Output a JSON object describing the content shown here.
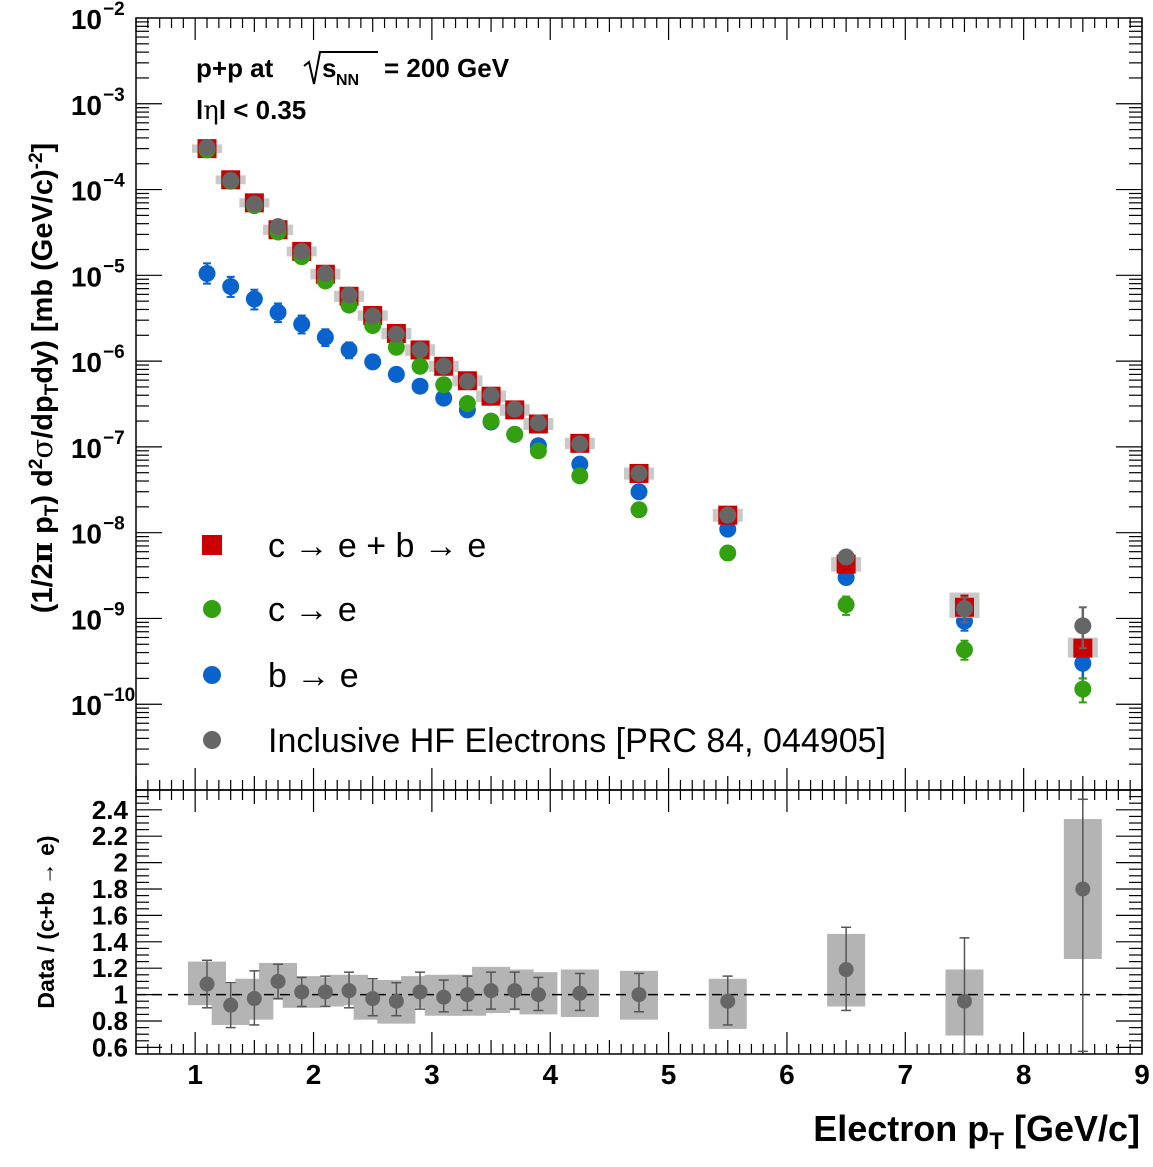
{
  "chart_data": [
    {
      "type": "scatter",
      "yscale": "log",
      "xlim": [
        0.5,
        9.0
      ],
      "ylim": [
        1e-11,
        0.01
      ],
      "ylabel_parts": [
        "(1/2",
        "π",
        " p",
        "T",
        ") d",
        "2",
        "σ",
        "/dp",
        "T",
        "dy) [mb (GeV/c)",
        "-2",
        "]"
      ],
      "y_ticks": [
        {
          "base": "10",
          "exp": "−10",
          "value": 1e-10
        },
        {
          "base": "10",
          "exp": "−9",
          "value": 1e-09
        },
        {
          "base": "10",
          "exp": "−8",
          "value": 1e-08
        },
        {
          "base": "10",
          "exp": "−7",
          "value": 1e-07
        },
        {
          "base": "10",
          "exp": "−6",
          "value": 1e-06
        },
        {
          "base": "10",
          "exp": "−5",
          "value": 1e-05
        },
        {
          "base": "10",
          "exp": "−4",
          "value": 0.0001
        },
        {
          "base": "10",
          "exp": "−3",
          "value": 0.001
        },
        {
          "base": "10",
          "exp": "−2",
          "value": 0.01
        }
      ],
      "annotations": {
        "system": "p+p at",
        "sqrt_s": "s",
        "sqrt_sub": "NN",
        "energy": "= 200 GeV",
        "eta_pre": "l",
        "eta_sym": "η",
        "eta_post": "l < 0.35"
      },
      "legend": {
        "placement": "bottom-left",
        "entries": [
          {
            "label": "c → e + b → e",
            "color": "#cc0000",
            "marker": "square"
          },
          {
            "label": "c → e",
            "color": "#33a00f",
            "marker": "circle"
          },
          {
            "label": "b → e",
            "color": "#0a63cc",
            "marker": "circle"
          },
          {
            "label": "Inclusive HF Electrons [PRC 84, 044905]",
            "color": "#666666",
            "marker": "circle"
          }
        ]
      },
      "series": [
        {
          "name": "c → e + b → e",
          "color": "#cc0000",
          "marker": "square",
          "x": [
            1.1,
            1.3,
            1.5,
            1.7,
            1.9,
            2.1,
            2.3,
            2.5,
            2.7,
            2.9,
            3.1,
            3.3,
            3.5,
            3.7,
            3.9,
            4.25,
            4.75,
            5.5,
            6.5,
            7.5,
            8.5
          ],
          "y": [
            0.0003,
            0.00013,
            7e-05,
            3.4e-05,
            1.9e-05,
            1.03e-05,
            5.7e-06,
            3.4e-06,
            2.1e-06,
            1.35e-06,
            8.7e-07,
            5.9e-07,
            3.9e-07,
            2.7e-07,
            1.85e-07,
            1.1e-07,
            4.9e-08,
            1.6e-08,
            4.3e-09,
            1.35e-09,
            4.5e-10
          ],
          "err_hi": [
            0.00031,
            0.000135,
            7.3e-05,
            3.6e-05,
            2e-05,
            1.1e-05,
            6.1e-06,
            3.6e-06,
            2.25e-06,
            1.45e-06,
            9.3e-07,
            6.3e-07,
            4.2e-07,
            2.9e-07,
            2e-07,
            1.18e-07,
            5.3e-08,
            1.75e-08,
            4.8e-09,
            1.85e-09,
            5.5e-10
          ],
          "err_lo": [
            0.00029,
            0.000125,
            6.7e-05,
            3.2e-05,
            1.8e-05,
            9.7e-06,
            5.3e-06,
            3.2e-06,
            1.95e-06,
            1.25e-06,
            8.1e-07,
            5.5e-07,
            3.6e-07,
            2.5e-07,
            1.7e-07,
            1.02e-07,
            4.5e-08,
            1.45e-08,
            3.8e-09,
            1.1e-09,
            3.8e-10
          ]
        },
        {
          "name": "c → e",
          "color": "#33a00f",
          "marker": "circle",
          "x": [
            1.1,
            1.3,
            1.5,
            1.7,
            1.9,
            2.1,
            2.3,
            2.5,
            2.7,
            2.9,
            3.1,
            3.3,
            3.5,
            3.7,
            3.9,
            4.25,
            4.75,
            5.5,
            6.5,
            7.5,
            8.5
          ],
          "y": [
            0.00029,
            0.000125,
            6.5e-05,
            3.2e-05,
            1.65e-05,
            8.6e-06,
            4.5e-06,
            2.6e-06,
            1.45e-06,
            8.7e-07,
            5.3e-07,
            3.2e-07,
            2e-07,
            1.4e-07,
            9e-08,
            4.6e-08,
            1.85e-08,
            5.8e-09,
            1.45e-09,
            4.3e-10,
            1.5e-10
          ],
          "err_hi": [
            0.000305,
            0.000132,
            6.9e-05,
            3.4e-05,
            1.75e-05,
            9.1e-06,
            4.8e-06,
            2.75e-06,
            1.55e-06,
            9.3e-07,
            5.7e-07,
            3.45e-07,
            2.15e-07,
            1.5e-07,
            9.7e-08,
            5e-08,
            2e-08,
            6.8e-09,
            1.8e-09,
            5.5e-10,
            2e-10
          ],
          "err_lo": [
            0.000275,
            0.000118,
            6.1e-05,
            3e-05,
            1.55e-05,
            8.1e-06,
            4.2e-06,
            2.45e-06,
            1.35e-06,
            8.1e-07,
            4.9e-07,
            2.95e-07,
            1.85e-07,
            1.3e-07,
            8.3e-08,
            4.2e-08,
            1.7e-08,
            4.8e-09,
            1.1e-09,
            3.3e-10,
            1.05e-10
          ]
        },
        {
          "name": "b → e",
          "color": "#0a63cc",
          "marker": "circle",
          "x": [
            1.1,
            1.3,
            1.5,
            1.7,
            1.9,
            2.1,
            2.3,
            2.5,
            2.7,
            2.9,
            3.1,
            3.3,
            3.5,
            3.7,
            3.9,
            4.25,
            4.75,
            5.5,
            6.5,
            7.5,
            8.5
          ],
          "y": [
            1.05e-05,
            7.4e-06,
            5.3e-06,
            3.7e-06,
            2.7e-06,
            1.9e-06,
            1.35e-06,
            9.8e-07,
            7e-07,
            5.1e-07,
            3.7e-07,
            2.7e-07,
            1.95e-07,
            1.4e-07,
            1.03e-07,
            6.3e-08,
            3e-08,
            1.1e-08,
            3e-09,
            9.3e-10,
            3e-10
          ],
          "err_hi": [
            1.38e-05,
            9.6e-06,
            6.8e-06,
            4.7e-06,
            3.4e-06,
            2.35e-06,
            1.65e-06,
            1.15e-06,
            8.2e-07,
            5.9e-07,
            4.2e-07,
            3.05e-07,
            2.2e-07,
            1.55e-07,
            1.13e-07,
            6.9e-08,
            3.3e-08,
            1.25e-08,
            3.6e-09,
            1.25e-09,
            4.5e-10
          ],
          "err_lo": [
            8e-06,
            5.6e-06,
            4e-06,
            2.85e-06,
            2.1e-06,
            1.5e-06,
            1.08e-06,
            8.2e-07,
            5.9e-07,
            4.4e-07,
            3.2e-07,
            2.35e-07,
            1.7e-07,
            1.25e-07,
            9.2e-08,
            5.7e-08,
            2.7e-08,
            9.5e-09,
            2.5e-09,
            7.2e-10,
            2e-10
          ]
        },
        {
          "name": "Inclusive HF Electrons [PRC 84, 044905]",
          "color": "#666666",
          "marker": "circle",
          "x": [
            1.1,
            1.3,
            1.5,
            1.7,
            1.9,
            2.1,
            2.3,
            2.5,
            2.7,
            2.9,
            3.1,
            3.3,
            3.5,
            3.7,
            3.9,
            4.25,
            4.75,
            5.5,
            6.5,
            7.5,
            8.5
          ],
          "y": [
            0.00031,
            0.000128,
            6.8e-05,
            3.7e-05,
            1.9e-05,
            1.05e-05,
            5.9e-06,
            3.35e-06,
            2.05e-06,
            1.35e-06,
            8.7e-07,
            5.8e-07,
            4e-07,
            2.75e-07,
            1.9e-07,
            1.08e-07,
            4.9e-08,
            1.6e-08,
            5.2e-09,
            1.3e-09,
            8.2e-10
          ],
          "err_hi": [
            0.00033,
            0.000136,
            7.2e-05,
            3.9e-05,
            2e-05,
            1.11e-05,
            6.2e-06,
            3.55e-06,
            2.17e-06,
            1.43e-06,
            9.2e-07,
            6.15e-07,
            4.25e-07,
            2.92e-07,
            2.02e-07,
            1.16e-07,
            5.3e-08,
            1.75e-08,
            5.7e-09,
            1.75e-09,
            1.35e-09
          ],
          "err_lo": [
            0.00029,
            0.00012,
            6.4e-05,
            3.5e-05,
            1.8e-05,
            9.9e-06,
            5.6e-06,
            3.15e-06,
            1.93e-06,
            1.27e-06,
            8.2e-07,
            5.45e-07,
            3.75e-07,
            2.58e-07,
            1.78e-07,
            1e-07,
            4.5e-08,
            1.45e-08,
            4.7e-09,
            9e-10,
            4.5e-10
          ]
        }
      ]
    },
    {
      "type": "scatter",
      "xlim": [
        0.5,
        9.0
      ],
      "ylim": [
        0.55,
        2.55
      ],
      "ylabel_parts": [
        "Data / (c+b",
        " → e)"
      ],
      "xlabel_parts": [
        "Electron p",
        "T",
        " [GeV/c]"
      ],
      "x_ticks": [
        "1",
        "2",
        "3",
        "4",
        "5",
        "6",
        "7",
        "8",
        "9"
      ],
      "y_ticks": [
        "0.6",
        "0.8",
        "1",
        "1.2",
        "1.4",
        "1.6",
        "1.8",
        "2",
        "2.2",
        "2.4"
      ],
      "reference_line": 1.0,
      "series": [
        {
          "color": "#666666",
          "marker": "circle",
          "x": [
            1.1,
            1.3,
            1.5,
            1.7,
            1.9,
            2.1,
            2.3,
            2.5,
            2.7,
            2.9,
            3.1,
            3.3,
            3.5,
            3.7,
            3.9,
            4.25,
            4.75,
            5.5,
            6.5,
            7.5,
            8.5
          ],
          "y": [
            1.08,
            0.92,
            0.97,
            1.1,
            1.02,
            1.02,
            1.03,
            0.97,
            0.95,
            1.02,
            0.98,
            1.0,
            1.03,
            1.03,
            1.0,
            1.01,
            1.0,
            0.95,
            1.19,
            0.95,
            1.8
          ],
          "stat_lo": [
            0.9,
            0.75,
            0.77,
            0.97,
            0.91,
            0.91,
            0.9,
            0.84,
            0.84,
            0.89,
            0.87,
            0.88,
            0.89,
            0.89,
            0.88,
            0.88,
            0.87,
            0.77,
            0.88,
            0.55,
            0.57
          ],
          "stat_hi": [
            1.26,
            1.09,
            1.18,
            1.23,
            1.13,
            1.14,
            1.17,
            1.12,
            1.09,
            1.17,
            1.11,
            1.14,
            1.17,
            1.17,
            1.13,
            1.16,
            1.16,
            1.14,
            1.51,
            1.43,
            2.48
          ],
          "sys_lo": [
            0.92,
            0.77,
            0.81,
            0.96,
            0.9,
            0.91,
            0.92,
            0.81,
            0.78,
            0.9,
            0.84,
            0.84,
            0.86,
            0.88,
            0.85,
            0.83,
            0.81,
            0.74,
            0.91,
            0.69,
            1.27
          ],
          "sys_hi": [
            1.25,
            1.08,
            1.12,
            1.24,
            1.14,
            1.13,
            1.15,
            1.11,
            1.11,
            1.14,
            1.15,
            1.15,
            1.21,
            1.19,
            1.17,
            1.19,
            1.18,
            1.12,
            1.46,
            1.19,
            2.33
          ]
        }
      ]
    }
  ]
}
